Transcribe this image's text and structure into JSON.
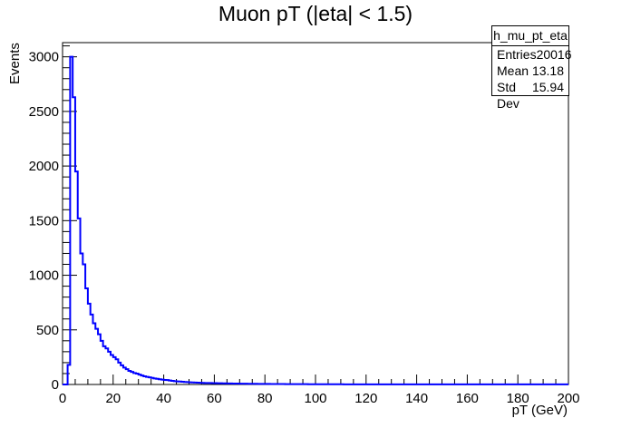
{
  "chart_data": {
    "type": "histogram",
    "title": "Muon pT (|eta| < 1.5)",
    "xlabel": "pT (GeV)",
    "ylabel": "Events",
    "xlim": [
      0,
      200
    ],
    "ylim": [
      0,
      3130
    ],
    "x_ticks": [
      "0",
      "20",
      "40",
      "60",
      "80",
      "100",
      "120",
      "140",
      "160",
      "180",
      "200"
    ],
    "y_ticks": [
      "0",
      "500",
      "1000",
      "1500",
      "2000",
      "2500",
      "3000"
    ],
    "bin_width": 1,
    "grid": false,
    "line_color": "#0000ff",
    "bin_low_edges": [
      0,
      1,
      2,
      3,
      4,
      5,
      6,
      7,
      8,
      9,
      10,
      11,
      12,
      13,
      14,
      15,
      16,
      17,
      18,
      19,
      20,
      21,
      22,
      23,
      24,
      25,
      26,
      27,
      28,
      29,
      30,
      31,
      32,
      33,
      34,
      35,
      36,
      37,
      38,
      39,
      40,
      41,
      42,
      43,
      44,
      45,
      46,
      47,
      48,
      49,
      50,
      51,
      52,
      53,
      54,
      55,
      56,
      57,
      58,
      59,
      60,
      61,
      62,
      63,
      64,
      65,
      66,
      67,
      68,
      69,
      70,
      71,
      72,
      73,
      74,
      75,
      76,
      77,
      78,
      79,
      80,
      81,
      82,
      83,
      84,
      85,
      86,
      87,
      88,
      89,
      90,
      91,
      92,
      93,
      94,
      95,
      96,
      97,
      98,
      99,
      100,
      101,
      102,
      103,
      104,
      105,
      106,
      107,
      108,
      109,
      110,
      111,
      112,
      113,
      114,
      115,
      116,
      117,
      118,
      119,
      120,
      121,
      122,
      123,
      124,
      125,
      126,
      127,
      128,
      129,
      130,
      131,
      132,
      133,
      134,
      135,
      136,
      137,
      138,
      139,
      140,
      141,
      142,
      143,
      144,
      145,
      146,
      147,
      148,
      149,
      150,
      151,
      152,
      153,
      154,
      155,
      156,
      157,
      158,
      159,
      160,
      161,
      162,
      163,
      164,
      165,
      166,
      167,
      168,
      169,
      170,
      171,
      172,
      173,
      174,
      175,
      176,
      177,
      178,
      179,
      180,
      181,
      182,
      183,
      184,
      185,
      186,
      187,
      188,
      189,
      190,
      191,
      192,
      193,
      194,
      195,
      196,
      197,
      198,
      199
    ],
    "values": [
      0,
      0,
      180,
      3000,
      2630,
      1950,
      1520,
      1200,
      1100,
      880,
      740,
      640,
      560,
      510,
      460,
      400,
      350,
      330,
      300,
      270,
      250,
      230,
      200,
      175,
      155,
      140,
      125,
      115,
      105,
      100,
      90,
      82,
      75,
      70,
      65,
      60,
      55,
      52,
      48,
      45,
      42,
      40,
      36,
      33,
      30,
      28,
      27,
      25,
      23,
      22,
      20,
      19,
      18,
      17,
      16,
      15,
      14,
      14,
      13,
      12,
      12,
      11,
      11,
      10,
      10,
      9,
      9,
      8,
      8,
      8,
      7,
      7,
      7,
      6,
      6,
      6,
      6,
      5,
      5,
      5,
      5,
      5,
      4,
      4,
      4,
      4,
      4,
      4,
      3,
      3,
      3,
      3,
      3,
      3,
      3,
      3,
      3,
      2,
      2,
      2,
      2,
      2,
      2,
      2,
      2,
      2,
      2,
      2,
      2,
      2,
      2,
      1,
      1,
      1,
      1,
      1,
      1,
      1,
      1,
      1,
      1,
      1,
      1,
      1,
      1,
      1,
      1,
      1,
      1,
      1,
      1,
      1,
      1,
      1,
      1,
      1,
      1,
      1,
      1,
      1,
      1,
      1,
      1,
      1,
      1,
      1,
      1,
      1,
      1,
      1,
      1,
      1,
      1,
      1,
      1,
      1,
      1,
      1,
      1,
      1,
      1,
      1,
      1,
      1,
      1,
      1,
      1,
      1,
      1,
      1,
      1,
      1,
      1,
      1,
      1,
      1,
      1,
      1,
      1,
      1,
      1,
      1,
      1,
      1,
      1,
      1,
      1,
      1,
      1,
      1,
      1,
      1,
      1,
      1,
      1,
      1,
      1,
      1,
      1,
      1,
      1,
      1
    ],
    "stats_box": {
      "name": "h_mu_pt_eta",
      "entries_label": "Entries",
      "entries": "20016",
      "mean_label": "Mean",
      "mean": "13.18",
      "stddev_label": "Std Dev",
      "stddev": "15.94"
    }
  }
}
